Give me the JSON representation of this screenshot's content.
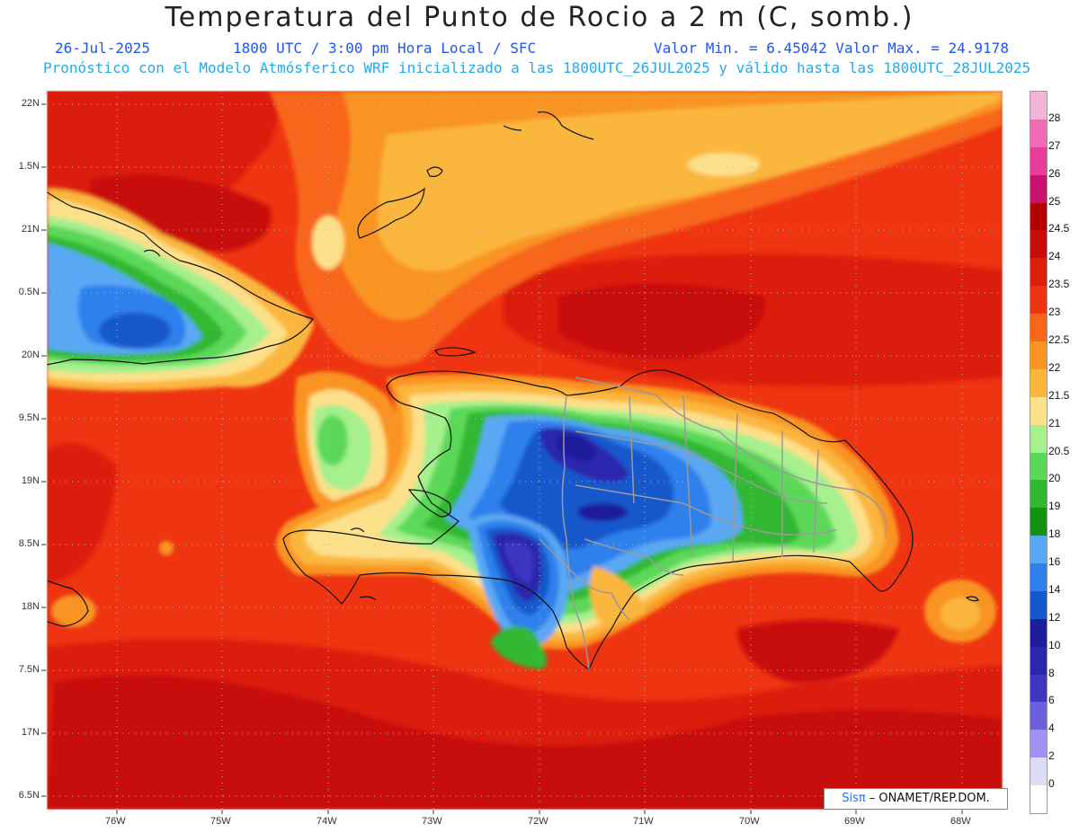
{
  "title": "Temperatura del Punto de Rocio a 2 m (C, somb.)",
  "date": "26-Jul-2025",
  "time": "1800 UTC / 3:00 pm Hora Local / SFC",
  "min_max": "Valor Min. = 6.45042  Valor Max. = 24.9178",
  "forecast_info": "Pronóstico con el Modelo Atmósferico WRF inicializado a las 1800UTC_26JUL2025 y válido hasta las  1800UTC_28JUL2025",
  "lat_labels": [
    "22N",
    "1.5N",
    "21N",
    "0.5N",
    "20N",
    "9.5N",
    "19N",
    "8.5N",
    "18N",
    "7.5N",
    "17N",
    "6.5N"
  ],
  "lon_labels": [
    "76W",
    "75W",
    "74W",
    "73W",
    "72W",
    "71W",
    "70W",
    "69W",
    "68W"
  ],
  "colorbar": {
    "labels": [
      "28",
      "27",
      "26",
      "25",
      "24.5",
      "24",
      "23.5",
      "23",
      "22.5",
      "22",
      "21.5",
      "21",
      "20.5",
      "20",
      "19",
      "18",
      "16",
      "14",
      "12",
      "10",
      "8",
      "6",
      "4",
      "2",
      "0"
    ],
    "colors": [
      "#f4b4d8",
      "#f06ab4",
      "#e63c9a",
      "#c8126e",
      "#b40000",
      "#c80c0c",
      "#dc1e0c",
      "#ee3410",
      "#f8661a",
      "#f99420",
      "#fbb63c",
      "#fde08a",
      "#a6f08e",
      "#5cd858",
      "#30b830",
      "#129412",
      "#5aa8f4",
      "#2e80ec",
      "#1458cc",
      "#1e1e9c",
      "#2a26ae",
      "#3c36c0",
      "#6c60dc",
      "#a290f2",
      "#dcdcf6",
      "#ffffff"
    ]
  },
  "credit": {
    "logo": "Sisπ",
    "text": " – ONAMET/REP.DOM."
  }
}
